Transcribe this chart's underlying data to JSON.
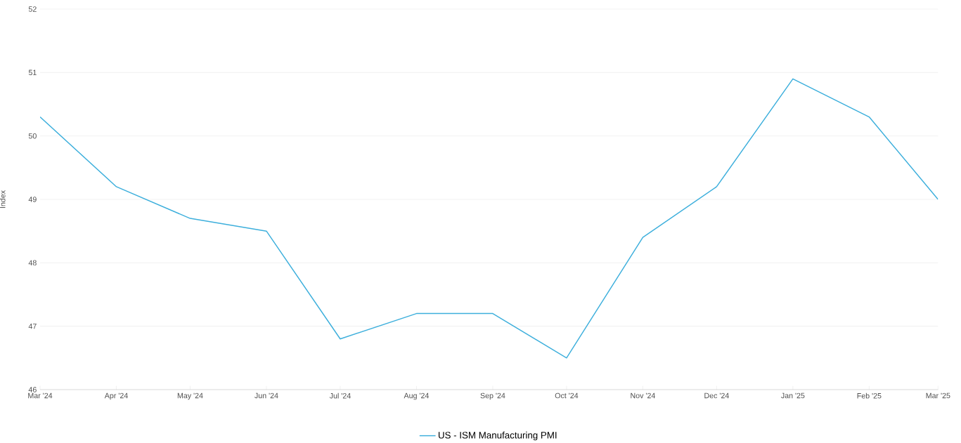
{
  "chart_data": {
    "type": "line",
    "ylabel": "Index",
    "x": [
      "2024-03-01",
      "2024-04-01",
      "2024-05-01",
      "2024-06-01",
      "2024-07-01",
      "2024-08-01",
      "2024-09-01",
      "2024-10-01",
      "2024-11-01",
      "2024-12-01",
      "2025-01-01",
      "2025-02-01",
      "2025-03-01"
    ],
    "series": [
      {
        "name": "US - ISM Manufacturing PMI",
        "color": "#3dafdc",
        "values": [
          50.3,
          49.2,
          48.7,
          48.5,
          46.8,
          47.2,
          47.2,
          46.5,
          48.4,
          49.2,
          50.9,
          50.3,
          49.0
        ]
      }
    ],
    "xlim": [
      "2024-03-01",
      "2025-03-01"
    ],
    "xticks": [
      {
        "value": "2024-03-01",
        "label": "Mar '24"
      },
      {
        "value": "2024-04-01",
        "label": "Apr '24"
      },
      {
        "value": "2024-05-01",
        "label": "May '24"
      },
      {
        "value": "2024-06-01",
        "label": "Jun '24"
      },
      {
        "value": "2024-07-01",
        "label": "Jul '24"
      },
      {
        "value": "2024-08-01",
        "label": "Aug '24"
      },
      {
        "value": "2024-09-01",
        "label": "Sep '24"
      },
      {
        "value": "2024-10-01",
        "label": "Oct '24"
      },
      {
        "value": "2024-11-01",
        "label": "Nov '24"
      },
      {
        "value": "2024-12-01",
        "label": "Dec '24"
      },
      {
        "value": "2025-01-01",
        "label": "Jan '25"
      },
      {
        "value": "2025-02-01",
        "label": "Feb '25"
      },
      {
        "value": "2025-03-01",
        "label": "Mar '25"
      }
    ],
    "ylim": [
      46,
      52
    ],
    "yticks": [
      46,
      47,
      48,
      49,
      50,
      51,
      52
    ],
    "grid": "y",
    "legend": "bottom",
    "marker": "none",
    "line_style": "solid"
  }
}
